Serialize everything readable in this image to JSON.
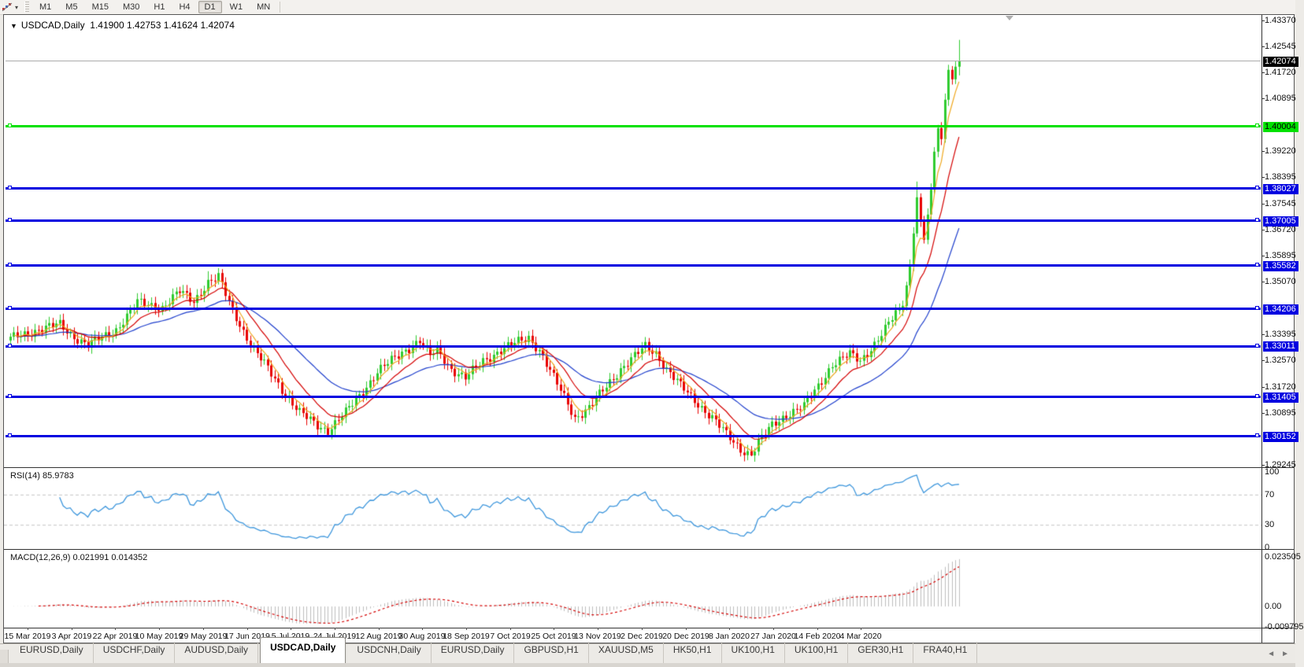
{
  "toolbar": {
    "chart_tool_icon": "chart-zigzag-icon",
    "dropdown_caret": "▾",
    "timeframes": [
      {
        "label": "M1",
        "active": false
      },
      {
        "label": "M5",
        "active": false
      },
      {
        "label": "M15",
        "active": false
      },
      {
        "label": "M30",
        "active": false
      },
      {
        "label": "H1",
        "active": false
      },
      {
        "label": "H4",
        "active": false
      },
      {
        "label": "D1",
        "active": true
      },
      {
        "label": "W1",
        "active": false
      },
      {
        "label": "MN",
        "active": false
      }
    ]
  },
  "chart": {
    "header": {
      "collapse_icon": "▼",
      "symbol": "USDCAD,Daily",
      "open": "1.41900",
      "high": "1.42753",
      "low": "1.41624",
      "close": "1.42074"
    },
    "price_axis": {
      "ticks": [
        {
          "label": "1.43370",
          "price": 1.4337
        },
        {
          "label": "1.42545",
          "price": 1.42545
        },
        {
          "label": "1.41720",
          "price": 1.4172
        },
        {
          "label": "1.40895",
          "price": 1.40895
        },
        {
          "label": "1.39220",
          "price": 1.3922
        },
        {
          "label": "1.38395",
          "price": 1.38395
        },
        {
          "label": "1.37545",
          "price": 1.37545
        },
        {
          "label": "1.36720",
          "price": 1.3672
        },
        {
          "label": "1.35895",
          "price": 1.35895
        },
        {
          "label": "1.35070",
          "price": 1.3507
        },
        {
          "label": "1.33395",
          "price": 1.33395
        },
        {
          "label": "1.32570",
          "price": 1.3257
        },
        {
          "label": "1.31720",
          "price": 1.3172
        },
        {
          "label": "1.30895",
          "price": 1.30895
        },
        {
          "label": "1.29245",
          "price": 1.29245
        }
      ]
    },
    "levels": [
      {
        "label": "1.42074",
        "price": 1.42074,
        "kind": "current-price",
        "line_color": "#ABABAB",
        "badge_bg": "#000000",
        "badge_fg": "#FFFFFF",
        "thickness": 1
      },
      {
        "label": "1.40004",
        "price": 1.40004,
        "kind": "horizontal-line",
        "line_color": "#00E100",
        "badge_bg": "#00E100",
        "badge_fg": "#000000",
        "thickness": 3
      },
      {
        "label": "1.38027",
        "price": 1.38027,
        "kind": "horizontal-line",
        "line_color": "#0000E0",
        "badge_bg": "#0000E0",
        "badge_fg": "#FFFFFF",
        "thickness": 3
      },
      {
        "label": "1.37005",
        "price": 1.37005,
        "kind": "horizontal-line",
        "line_color": "#0000E0",
        "badge_bg": "#0000E0",
        "badge_fg": "#FFFFFF",
        "thickness": 3
      },
      {
        "label": "1.35582",
        "price": 1.35582,
        "kind": "horizontal-line",
        "line_color": "#0000E0",
        "badge_bg": "#0000E0",
        "badge_fg": "#FFFFFF",
        "thickness": 3
      },
      {
        "label": "1.34206",
        "price": 1.34206,
        "kind": "horizontal-line",
        "line_color": "#0000E0",
        "badge_bg": "#0000E0",
        "badge_fg": "#FFFFFF",
        "thickness": 3
      },
      {
        "label": "1.33011",
        "price": 1.33011,
        "kind": "horizontal-line",
        "line_color": "#0000E0",
        "badge_bg": "#0000E0",
        "badge_fg": "#FFFFFF",
        "thickness": 3
      },
      {
        "label": "1.31405",
        "price": 1.31405,
        "kind": "horizontal-line",
        "line_color": "#0000E0",
        "badge_bg": "#0000E0",
        "badge_fg": "#FFFFFF",
        "thickness": 3
      },
      {
        "label": "1.30152",
        "price": 1.30152,
        "kind": "horizontal-line",
        "line_color": "#0000E0",
        "badge_bg": "#0000E0",
        "badge_fg": "#FFFFFF",
        "thickness": 3
      }
    ],
    "colors": {
      "up": "#2FCB2F",
      "down": "#E80000"
    },
    "moving_averages": [
      {
        "name": "ma-slow",
        "period": 34,
        "color": "#1F3FCC"
      },
      {
        "name": "ma-mid",
        "period": 13,
        "color": "#D40000"
      },
      {
        "name": "ma-fast",
        "period": 5,
        "color": "#EFA820"
      }
    ]
  },
  "chart_data": {
    "type": "candlestick-ohlc",
    "title": "USDCAD Daily",
    "x_range": [
      "15 Mar 2019",
      "20 Mar 2020"
    ],
    "y_range": [
      1.2922,
      1.43445
    ],
    "bar_count": 270,
    "close_anchors": [
      [
        0,
        1.3325
      ],
      [
        8,
        1.3355
      ],
      [
        14,
        1.337
      ],
      [
        17,
        1.334
      ],
      [
        22,
        1.3305
      ],
      [
        27,
        1.3335
      ],
      [
        30,
        1.3355
      ],
      [
        36,
        1.344
      ],
      [
        43,
        1.3425
      ],
      [
        48,
        1.3475
      ],
      [
        52,
        1.3445
      ],
      [
        56,
        1.3505
      ],
      [
        59,
        1.352
      ],
      [
        62,
        1.344
      ],
      [
        66,
        1.335
      ],
      [
        69,
        1.329
      ],
      [
        73,
        1.323
      ],
      [
        78,
        1.315
      ],
      [
        82,
        1.309
      ],
      [
        87,
        1.305
      ],
      [
        90,
        1.3035
      ],
      [
        95,
        1.309
      ],
      [
        100,
        1.316
      ],
      [
        104,
        1.322
      ],
      [
        108,
        1.3255
      ],
      [
        112,
        1.329
      ],
      [
        116,
        1.332
      ],
      [
        119,
        1.327
      ],
      [
        121,
        1.329
      ],
      [
        125,
        1.323
      ],
      [
        129,
        1.32
      ],
      [
        134,
        1.3255
      ],
      [
        139,
        1.329
      ],
      [
        143,
        1.331
      ],
      [
        147,
        1.333
      ],
      [
        150,
        1.329
      ],
      [
        154,
        1.32
      ],
      [
        158,
        1.312
      ],
      [
        160,
        1.3075
      ],
      [
        164,
        1.3105
      ],
      [
        168,
        1.316
      ],
      [
        173,
        1.323
      ],
      [
        177,
        1.327
      ],
      [
        180,
        1.33
      ],
      [
        183,
        1.328
      ],
      [
        186,
        1.323
      ],
      [
        190,
        1.3175
      ],
      [
        194,
        1.313
      ],
      [
        199,
        1.3075
      ],
      [
        203,
        1.302
      ],
      [
        207,
        1.2975
      ],
      [
        210,
        1.2958
      ],
      [
        212,
        1.2995
      ],
      [
        216,
        1.305
      ],
      [
        220,
        1.3085
      ],
      [
        225,
        1.311
      ],
      [
        229,
        1.3175
      ],
      [
        233,
        1.3245
      ],
      [
        238,
        1.3275
      ],
      [
        241,
        1.3255
      ],
      [
        245,
        1.331
      ],
      [
        248,
        1.3355
      ],
      [
        251,
        1.3405
      ],
      [
        253,
        1.343
      ],
      [
        255,
        1.356
      ],
      [
        256,
        1.366
      ],
      [
        257,
        1.3775
      ],
      [
        258,
        1.37
      ],
      [
        259,
        1.364
      ],
      [
        260,
        1.372
      ],
      [
        261,
        1.38
      ],
      [
        262,
        1.392
      ],
      [
        263,
        1.3995
      ],
      [
        264,
        1.396
      ],
      [
        265,
        1.4085
      ],
      [
        266,
        1.418
      ],
      [
        267,
        1.415
      ],
      [
        268,
        1.419
      ],
      [
        269,
        1.42074
      ]
    ],
    "wiggle": {
      "amp1": 0.0011,
      "f1": 1.93,
      "amp2": 0.0007,
      "f2": 0.53,
      "cutoff": 252
    },
    "high_overrides": {
      "56": 1.354,
      "59": 1.355,
      "257": 1.3825,
      "263": 1.4005
    },
    "low_overrides": {
      "90": 1.3018,
      "210": 1.2952,
      "259": 1.3628
    },
    "last_bar": {
      "o": 1.419,
      "h": 1.42753,
      "l": 1.41624,
      "c": 1.42074
    }
  },
  "rsi": {
    "label": "RSI(14) 85.9783",
    "period": 14,
    "value": "85.9783",
    "line_color": "#3D96DC",
    "axis": [
      {
        "label": "100",
        "v": 100
      },
      {
        "label": "70",
        "v": 70,
        "dashed": true
      },
      {
        "label": "30",
        "v": 30,
        "dashed": true
      },
      {
        "label": "0",
        "v": 0
      }
    ]
  },
  "macd": {
    "label": "MACD(12,26,9) 0.021991 0.014352",
    "fast": 12,
    "slow": 26,
    "signal": 9,
    "main_value": "0.021991",
    "signal_value": "0.014352",
    "hist_color": "#BDBDBD",
    "signal_color": "#D40000",
    "axis": [
      {
        "label": "0.023505",
        "v": 0.023505
      },
      {
        "label": "0.00",
        "v": 0
      },
      {
        "label": "-0.009795",
        "v": -0.009795
      }
    ]
  },
  "date_axis": {
    "labels": [
      "15 Mar 2019",
      "3 Apr 2019",
      "22 Apr 2019",
      "10 May 2019",
      "29 May 2019",
      "17 Jun 2019",
      "5 Jul 2019",
      "24 Jul 2019",
      "12 Aug 2019",
      "30 Aug 2019",
      "18 Sep 2019",
      "7 Oct 2019",
      "25 Oct 2019",
      "13 Nov 2019",
      "2 Dec 2019",
      "20 Dec 2019",
      "8 Jan 2020",
      "27 Jan 2020",
      "14 Feb 2020",
      "4 Mar 2020"
    ]
  },
  "tabs": {
    "items": [
      {
        "label": "EURUSD,Daily",
        "active": false
      },
      {
        "label": "USDCHF,Daily",
        "active": false
      },
      {
        "label": "AUDUSD,Daily",
        "active": false
      },
      {
        "label": "USDCAD,Daily",
        "active": true
      },
      {
        "label": "USDCNH,Daily",
        "active": false
      },
      {
        "label": "EURUSD,Daily",
        "active": false
      },
      {
        "label": "GBPUSD,H1",
        "active": false
      },
      {
        "label": "XAUUSD,M5",
        "active": false
      },
      {
        "label": "HK50,H1",
        "active": false
      },
      {
        "label": "UK100,H1",
        "active": false
      },
      {
        "label": "UK100,H1",
        "active": false
      },
      {
        "label": "GER30,H1",
        "active": false
      },
      {
        "label": "FRA40,H1",
        "active": false
      }
    ],
    "nav_left": "◄",
    "nav_right": "►"
  }
}
